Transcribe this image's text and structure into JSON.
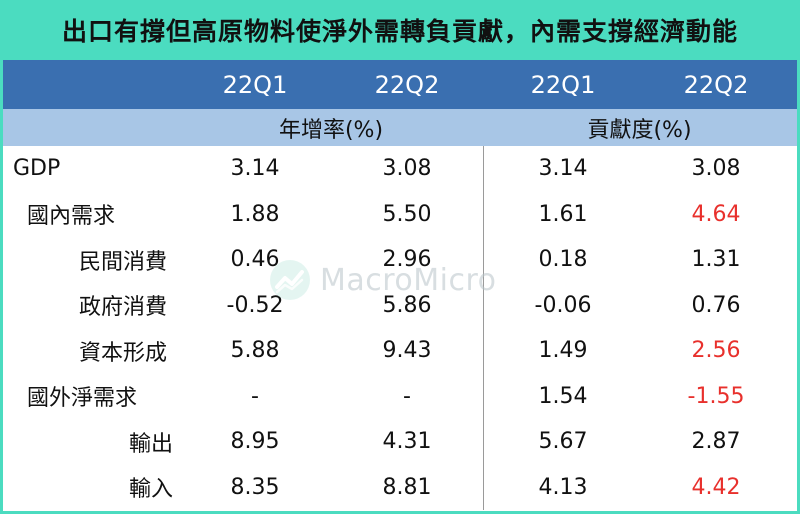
{
  "title": "出口有撐但高原物料使淨外需轉負貢獻，內需支撐經濟動能",
  "header": {
    "periods": [
      "22Q1",
      "22Q2",
      "22Q1",
      "22Q2"
    ],
    "growth_label": "年增率(%)",
    "contribution_label": "貢獻度(%)"
  },
  "rows": [
    {
      "label": "GDP",
      "g1": "3.14",
      "g2": "3.08",
      "c1": "3.14",
      "c2": "3.08"
    },
    {
      "label": "國內需求",
      "g1": "1.88",
      "g2": "5.50",
      "c1": "1.61",
      "c2": "4.64"
    },
    {
      "label": "民間消費",
      "g1": "0.46",
      "g2": "2.96",
      "c1": "0.18",
      "c2": "1.31"
    },
    {
      "label": "政府消費",
      "g1": "-0.52",
      "g2": "5.86",
      "c1": "-0.06",
      "c2": "0.76"
    },
    {
      "label": "資本形成",
      "g1": "5.88",
      "g2": "9.43",
      "c1": "1.49",
      "c2": "2.56"
    },
    {
      "label": "國外淨需求",
      "g1": "-",
      "g2": "-",
      "c1": "1.54",
      "c2": "-1.55"
    },
    {
      "label": "輸出",
      "g1": "8.95",
      "g2": "4.31",
      "c1": "5.67",
      "c2": "2.87"
    },
    {
      "label": "輸入",
      "g1": "8.35",
      "g2": "8.81",
      "c1": "4.13",
      "c2": "4.42"
    }
  ],
  "colors": {
    "title_bg": "#4bdcc0",
    "header_bg": "#3a6fb0",
    "subheader_bg": "#a8c6e6",
    "highlight": "#e8302c"
  },
  "watermark": {
    "text": "MacroMicro",
    "icon": "macromicro-logo-icon"
  }
}
